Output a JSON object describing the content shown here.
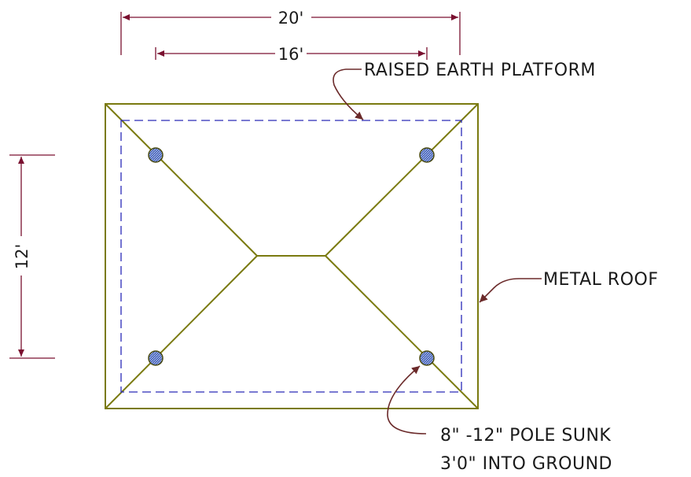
{
  "dimensions": {
    "outer_width": "20'",
    "inner_width": "16'",
    "depth": "12'"
  },
  "labels": {
    "platform": "RAISED  EARTH  PLATFORM",
    "roof": "METAL  ROOF",
    "pole_line1": "8\"  -12\"  POLE  SUNK",
    "pole_line2": "3'0\"  INTO  GROUND"
  },
  "colors": {
    "roof_line": "#7a7a10",
    "dimension_line": "#7a1030",
    "platform_dash": "#2a2ab8",
    "leader": "#6b2a2a",
    "pole_fill": "#3a5ab8"
  }
}
